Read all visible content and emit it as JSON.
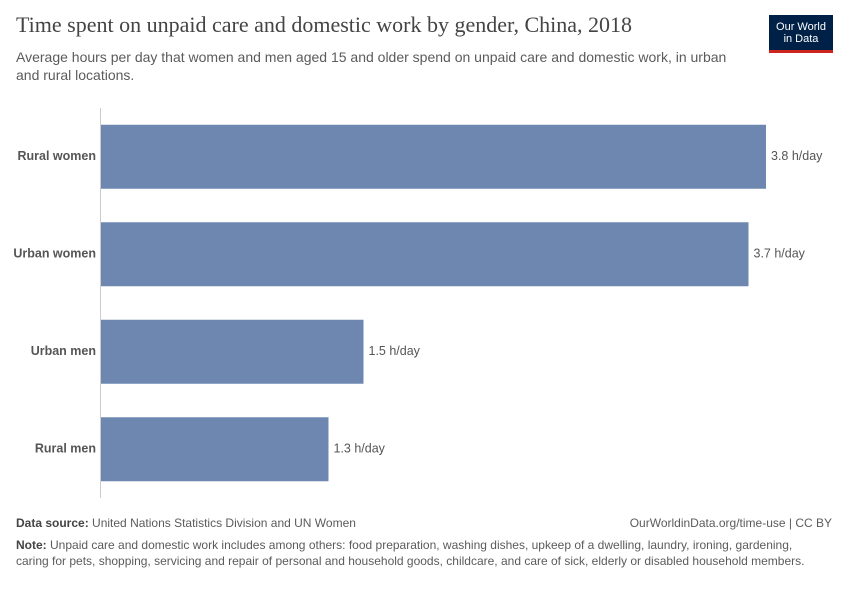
{
  "chart_data": {
    "type": "bar",
    "orientation": "horizontal",
    "title": "Time spent on unpaid care and domestic work by gender, China, 2018",
    "subtitle": "Average hours per day that women and men aged 15 and older spend on unpaid care and domestic work, in urban and rural locations.",
    "categories": [
      "Rural women",
      "Urban women",
      "Urban men",
      "Rural men"
    ],
    "values": [
      3.8,
      3.7,
      1.5,
      1.3
    ],
    "value_labels": [
      "3.8 h/day",
      "3.7 h/day",
      "1.5 h/day",
      "1.3 h/day"
    ],
    "color": "#6d87b0",
    "source_label": "Data source:",
    "source": "United Nations Statistics Division and UN Women",
    "url": "OurWorldinData.org/time-use | CC BY",
    "note_label": "Note:",
    "note": "Unpaid care and domestic work includes among others: food preparation, washing dishes, upkeep of a dwelling, laundry, ironing, gardening, caring for pets, shopping, servicing and repair of personal and household goods, childcare, and care of sick, elderly or disabled household members.",
    "logo": [
      "Our World",
      "in Data"
    ]
  }
}
